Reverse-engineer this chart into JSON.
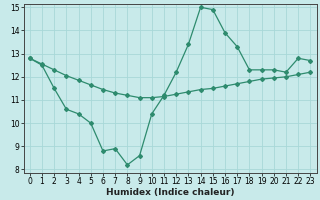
{
  "x": [
    0,
    1,
    2,
    3,
    4,
    5,
    6,
    7,
    8,
    9,
    10,
    11,
    12,
    13,
    14,
    15,
    16,
    17,
    18,
    19,
    20,
    21,
    22,
    23
  ],
  "y_wavy": [
    12.8,
    12.5,
    11.5,
    10.6,
    10.4,
    10.0,
    8.8,
    8.9,
    8.2,
    8.6,
    10.4,
    11.2,
    12.2,
    13.4,
    15.0,
    14.9,
    13.9,
    13.3,
    12.3,
    12.3,
    12.3,
    12.2,
    12.8,
    12.7
  ],
  "y_straight": [
    12.8,
    12.55,
    12.3,
    12.05,
    11.85,
    11.65,
    11.45,
    11.3,
    11.2,
    11.1,
    11.1,
    11.15,
    11.25,
    11.35,
    11.45,
    11.5,
    11.6,
    11.7,
    11.8,
    11.9,
    11.95,
    12.0,
    12.1,
    12.2
  ],
  "line_color": "#2e8b6e",
  "bg_color": "#c8eaea",
  "grid_color": "#b0d8d8",
  "xlabel": "Humidex (Indice chaleur)",
  "ylim": [
    8,
    15
  ],
  "xlim": [
    -0.5,
    23.5
  ],
  "yticks": [
    8,
    9,
    10,
    11,
    12,
    13,
    14,
    15
  ],
  "xticks": [
    0,
    1,
    2,
    3,
    4,
    5,
    6,
    7,
    8,
    9,
    10,
    11,
    12,
    13,
    14,
    15,
    16,
    17,
    18,
    19,
    20,
    21,
    22,
    23
  ],
  "xlabel_fontsize": 6.5,
  "tick_fontsize": 5.5
}
